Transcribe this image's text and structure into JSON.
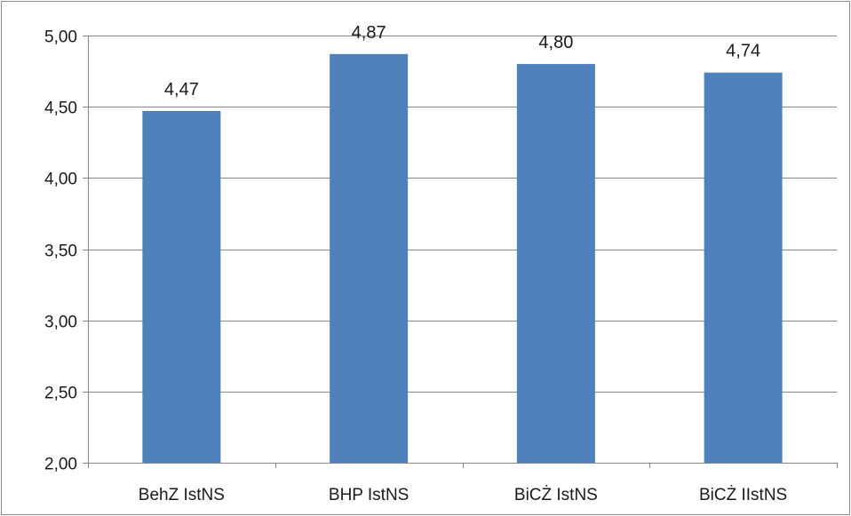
{
  "chart_data": {
    "type": "bar",
    "categories": [
      "BehZ IstNS",
      "BHP IstNS",
      "BiCŻ IstNS",
      "BiCŻ IIstNS"
    ],
    "values": [
      4.47,
      4.87,
      4.8,
      4.74
    ],
    "data_labels": [
      "4,47",
      "4,87",
      "4,80",
      "4,74"
    ],
    "ylim": [
      2.0,
      5.0
    ],
    "y_ticks": [
      2.0,
      2.5,
      3.0,
      3.5,
      4.0,
      4.5,
      5.0
    ],
    "y_tick_labels": [
      "2,00",
      "2,50",
      "3,00",
      "3,50",
      "4,00",
      "4,50",
      "5,00"
    ],
    "grid": true,
    "legend": "none",
    "colors": {
      "bar": "#4f81bd",
      "gridline": "#868686",
      "axis": "#868686"
    }
  }
}
